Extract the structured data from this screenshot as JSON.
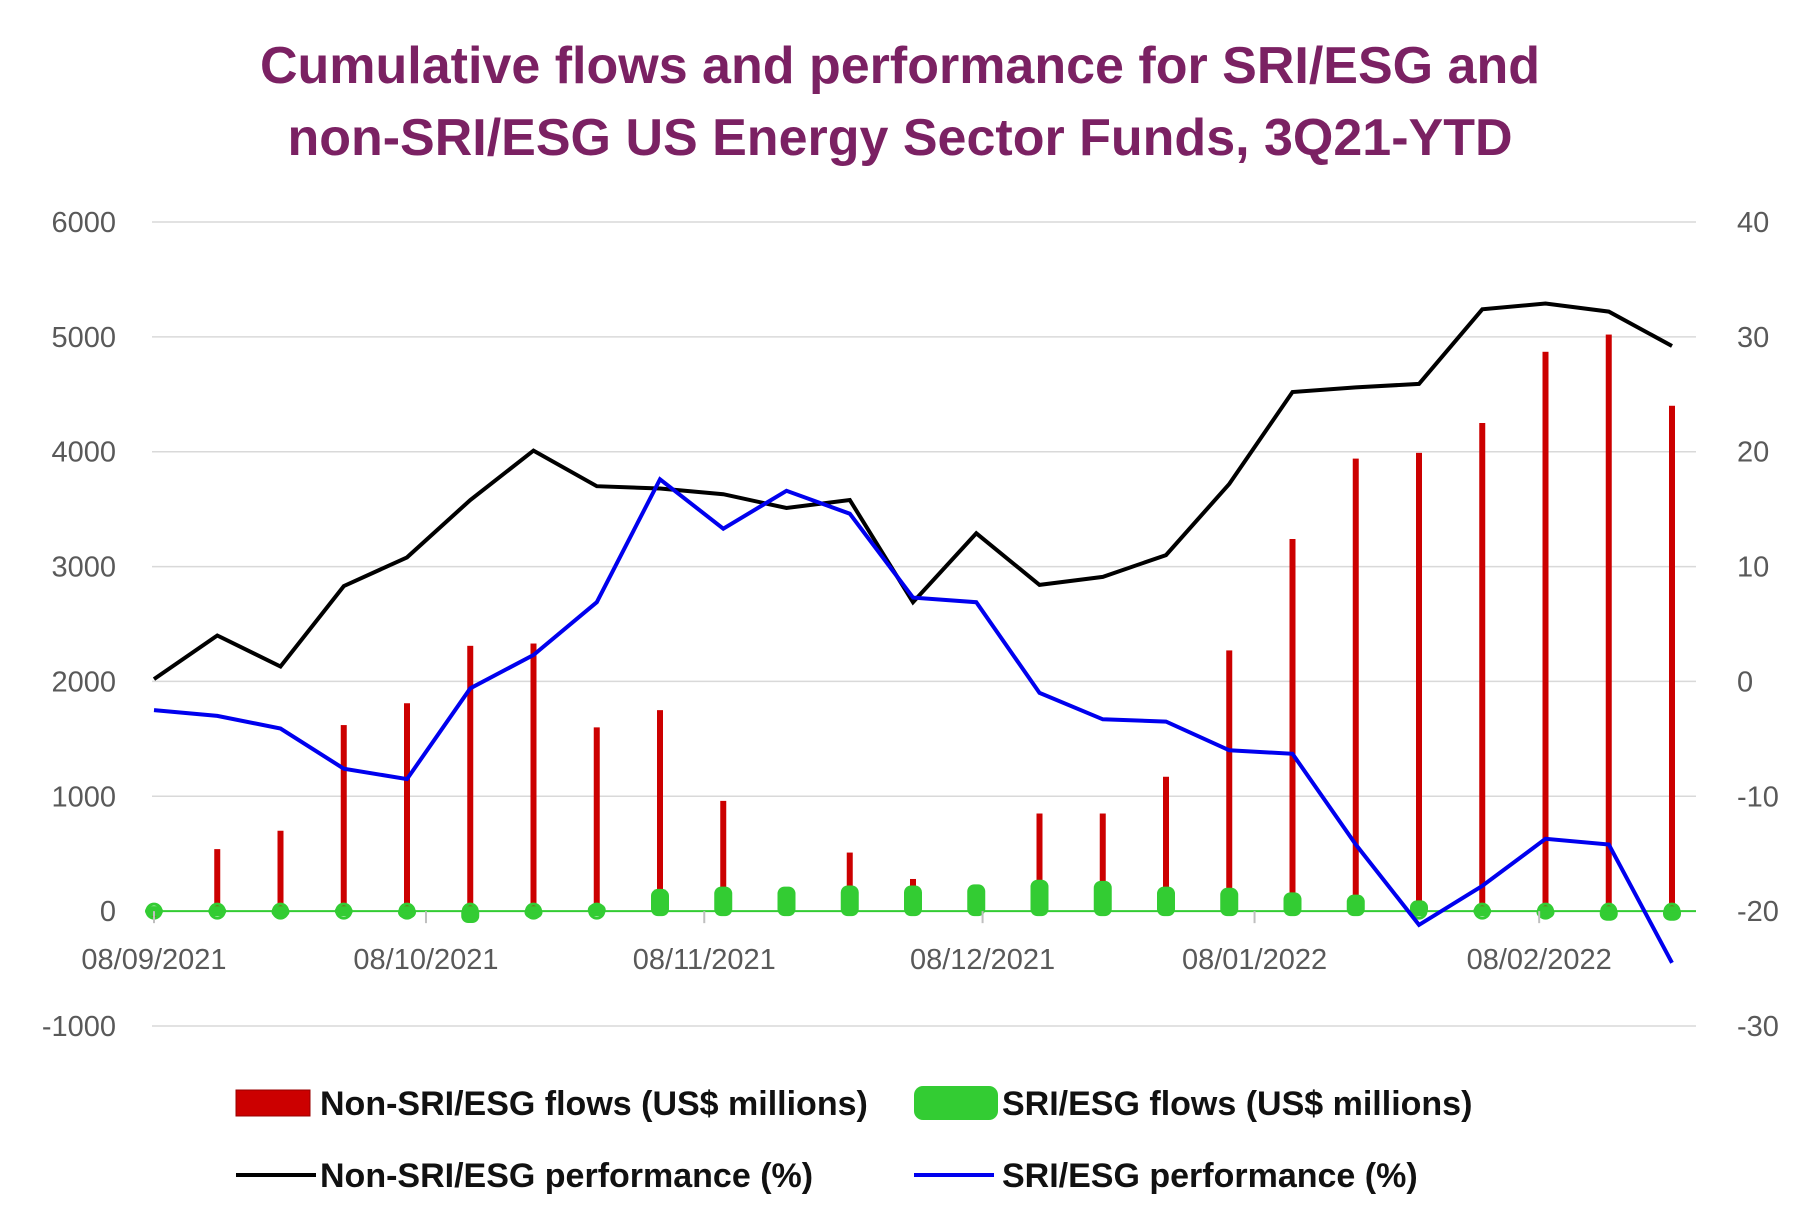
{
  "chart_data": {
    "type": "bar",
    "title_lines": [
      "Cumulative flows and performance for SRI/ESG and",
      "non-SRI/ESG US Energy Sector Funds, 3Q21-YTD"
    ],
    "x_tick_labels": [
      "08/09/2021",
      "08/10/2021",
      "08/11/2021",
      "08/12/2021",
      "08/01/2022",
      "08/02/2022"
    ],
    "x_tick_weeks": [
      0,
      4.3,
      8.7,
      13.1,
      17.4,
      21.9
    ],
    "y_left": {
      "ylim": [
        -1000,
        6000
      ],
      "ticks": [
        -1000,
        0,
        1000,
        2000,
        3000,
        4000,
        5000,
        6000
      ]
    },
    "y_right": {
      "ylim": [
        -30,
        40
      ],
      "ticks": [
        -30,
        -20,
        -10,
        0,
        10,
        20,
        30,
        40
      ]
    },
    "grid": true,
    "legend_position": "bottom",
    "series": [
      {
        "name": "Non-SRI/ESG flows (US$ millions)",
        "kind": "bar",
        "axis": "left",
        "color": "#cc0000",
        "values": [
          -50,
          540,
          700,
          1620,
          1810,
          2310,
          2330,
          1600,
          1750,
          960,
          150,
          510,
          280,
          200,
          850,
          850,
          1170,
          2270,
          3240,
          3940,
          3990,
          4250,
          4870,
          5020,
          4400
        ]
      },
      {
        "name": "SRI/ESG flows (US$ millions)",
        "kind": "bar",
        "axis": "left",
        "color": "#33cc33",
        "values": [
          0,
          0,
          -10,
          0,
          -20,
          -60,
          -20,
          20,
          150,
          170,
          170,
          180,
          180,
          190,
          230,
          220,
          170,
          160,
          120,
          100,
          50,
          0,
          -20,
          -40,
          -40
        ]
      },
      {
        "name": "Non-SRI/ESG performance (%)",
        "kind": "line",
        "axis": "right",
        "color": "#000000",
        "values": [
          0.2,
          4.0,
          1.3,
          8.3,
          10.8,
          15.8,
          20.1,
          17.0,
          16.8,
          16.3,
          15.1,
          15.8,
          6.9,
          12.9,
          8.4,
          9.1,
          11.0,
          17.2,
          25.2,
          25.6,
          25.9,
          32.4,
          32.9,
          32.2,
          29.2
        ]
      },
      {
        "name": "SRI/ESG performance (%)",
        "kind": "line",
        "axis": "right",
        "color": "#0000ee",
        "values": [
          -2.5,
          -3.0,
          -4.1,
          -7.6,
          -8.5,
          -0.6,
          2.3,
          6.9,
          17.6,
          13.3,
          16.6,
          14.6,
          7.3,
          6.9,
          -1.0,
          -3.3,
          -3.5,
          -6.0,
          -6.3,
          -14.2,
          -21.2,
          -17.8,
          -13.7,
          -14.2,
          -24.5
        ]
      }
    ]
  }
}
